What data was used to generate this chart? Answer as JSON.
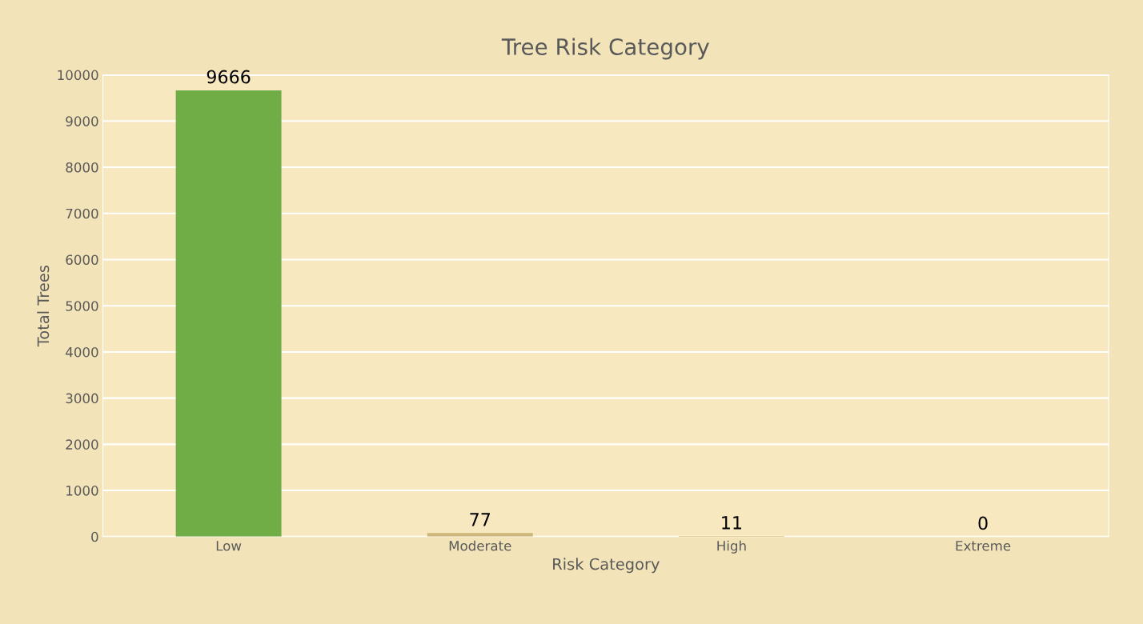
{
  "chart_data": {
    "type": "bar",
    "title": "Tree Risk Category",
    "xlabel": "Risk Category",
    "ylabel": "Total Trees",
    "categories": [
      "Low",
      "Moderate",
      "High",
      "Extreme"
    ],
    "values": [
      9666,
      77,
      11,
      0
    ],
    "colors": [
      "#70ad47",
      "#cdb67a",
      "#bf9000",
      "#8b0000"
    ],
    "ylim": [
      0,
      10000
    ],
    "yticks": [
      0,
      1000,
      2000,
      3000,
      4000,
      5000,
      6000,
      7000,
      8000,
      9000,
      10000
    ],
    "grid": "y",
    "data_labels": true
  }
}
